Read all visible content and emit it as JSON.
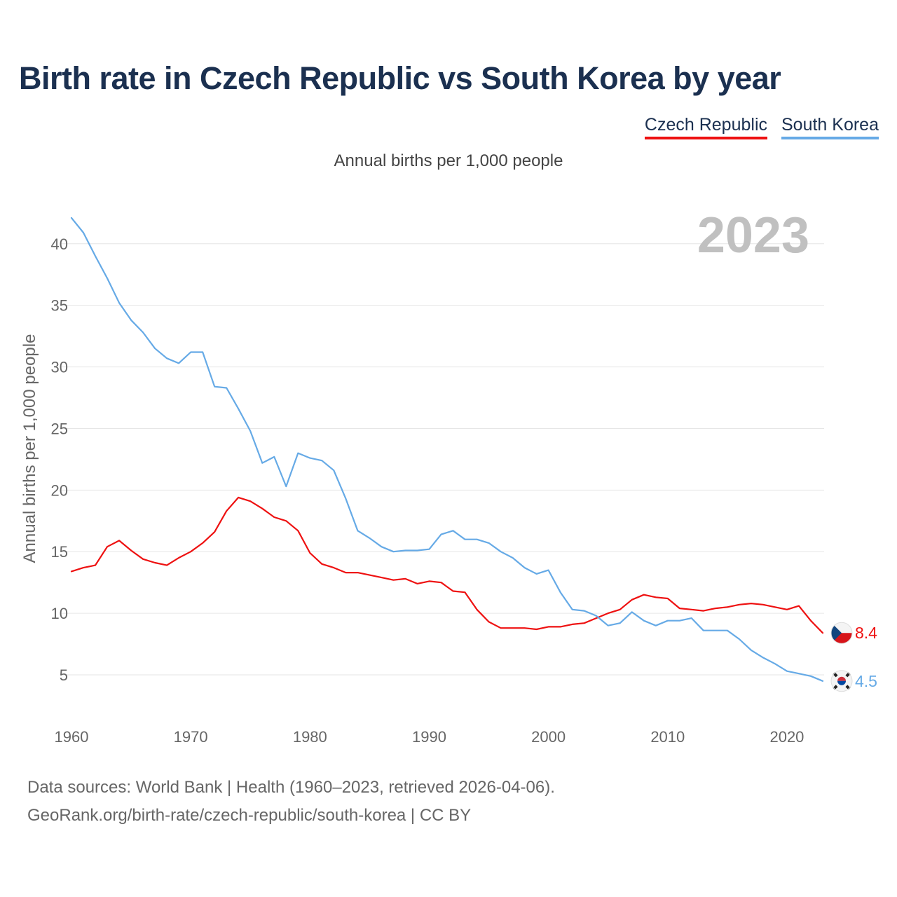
{
  "title": "Birth rate in Czech Republic vs South Korea by year",
  "legend": [
    {
      "label": "Czech Republic",
      "color": "#ee1111"
    },
    {
      "label": "South Korea",
      "color": "#66aae6"
    }
  ],
  "subtitle": "Annual births per 1,000 people",
  "year_watermark": "2023",
  "source_line1": "Data sources: World Bank | Health (1960–2023, retrieved 2026-04-06).",
  "source_line2": "GeoRank.org/birth-rate/czech-republic/south-korea | CC BY",
  "chart_data": {
    "type": "line",
    "title": "Birth rate in Czech Republic vs South Korea by year",
    "xlabel": "",
    "ylabel": "Annual births per 1,000 people",
    "xlim": [
      1960,
      2023
    ],
    "ylim": [
      2,
      43
    ],
    "x_ticks": [
      1960,
      1970,
      1980,
      1990,
      2000,
      2010,
      2020
    ],
    "y_ticks": [
      5,
      10,
      15,
      20,
      25,
      30,
      35,
      40
    ],
    "grid": true,
    "x": [
      1960,
      1961,
      1962,
      1963,
      1964,
      1965,
      1966,
      1967,
      1968,
      1969,
      1970,
      1971,
      1972,
      1973,
      1974,
      1975,
      1976,
      1977,
      1978,
      1979,
      1980,
      1981,
      1982,
      1983,
      1984,
      1985,
      1986,
      1987,
      1988,
      1989,
      1990,
      1991,
      1992,
      1993,
      1994,
      1995,
      1996,
      1997,
      1998,
      1999,
      2000,
      2001,
      2002,
      2003,
      2004,
      2005,
      2006,
      2007,
      2008,
      2009,
      2010,
      2011,
      2012,
      2013,
      2014,
      2015,
      2016,
      2017,
      2018,
      2019,
      2020,
      2021,
      2022,
      2023
    ],
    "series": [
      {
        "name": "Czech Republic",
        "color": "#ee1111",
        "end_label": "8.4",
        "values": [
          13.4,
          13.7,
          13.9,
          15.4,
          15.9,
          15.1,
          14.4,
          14.1,
          13.9,
          14.5,
          15.0,
          15.7,
          16.6,
          18.3,
          19.4,
          19.1,
          18.5,
          17.8,
          17.5,
          16.7,
          14.9,
          14.0,
          13.7,
          13.3,
          13.3,
          13.1,
          12.9,
          12.7,
          12.8,
          12.4,
          12.6,
          12.5,
          11.8,
          11.7,
          10.3,
          9.3,
          8.8,
          8.8,
          8.8,
          8.7,
          8.9,
          8.9,
          9.1,
          9.2,
          9.6,
          10.0,
          10.3,
          11.1,
          11.5,
          11.3,
          11.2,
          10.4,
          10.3,
          10.2,
          10.4,
          10.5,
          10.7,
          10.8,
          10.7,
          10.5,
          10.3,
          10.6,
          9.4,
          8.4
        ]
      },
      {
        "name": "South Korea",
        "color": "#66aae6",
        "end_label": "4.5",
        "values": [
          42.1,
          40.9,
          39.0,
          37.2,
          35.2,
          33.8,
          32.8,
          31.5,
          30.7,
          30.3,
          31.2,
          31.2,
          28.4,
          28.3,
          26.6,
          24.8,
          22.2,
          22.7,
          20.3,
          23.0,
          22.6,
          22.4,
          21.6,
          19.3,
          16.7,
          16.1,
          15.4,
          15.0,
          15.1,
          15.1,
          15.2,
          16.4,
          16.7,
          16.0,
          16.0,
          15.7,
          15.0,
          14.5,
          13.7,
          13.2,
          13.5,
          11.7,
          10.3,
          10.2,
          9.8,
          9.0,
          9.2,
          10.1,
          9.4,
          9.0,
          9.4,
          9.4,
          9.6,
          8.6,
          8.6,
          8.6,
          7.9,
          7.0,
          6.4,
          5.9,
          5.3,
          5.1,
          4.9,
          4.5
        ]
      }
    ]
  }
}
